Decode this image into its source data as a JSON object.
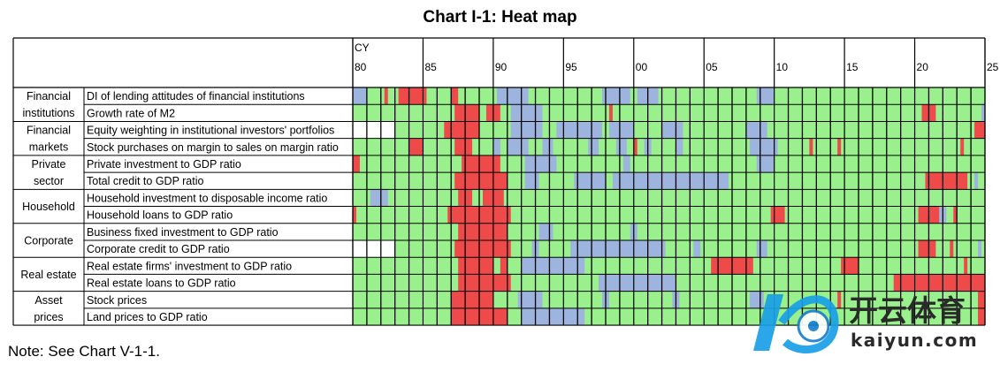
{
  "title": "Chart I-1: Heat map",
  "note": "Note: See Chart V-1-1.",
  "watermark": {
    "brand_cn": "开云体育",
    "brand_en": "kaiyun.com"
  },
  "colors": {
    "green": "#99f08c",
    "red": "#ee4a4a",
    "blue": "#9db4de",
    "white": "#ffffff",
    "grid": "#000000"
  },
  "chart_data": {
    "type": "heatmap",
    "title": "Chart I-1: Heat map",
    "axis_label": "CY",
    "year_ticks": [
      "80",
      "85",
      "90",
      "95",
      "00",
      "05",
      "10",
      "15",
      "20",
      "25"
    ],
    "x_range": [
      1980,
      2025
    ],
    "legend": [],
    "groups": [
      {
        "label": "Financial institutions",
        "label_lines": [
          "Financial",
          "institutions"
        ],
        "rows": [
          0,
          1
        ]
      },
      {
        "label": "Financial markets",
        "label_lines": [
          "Financial",
          "markets"
        ],
        "rows": [
          2,
          3
        ]
      },
      {
        "label": "Private sector",
        "label_lines": [
          "Private",
          "sector"
        ],
        "rows": [
          4,
          5
        ]
      },
      {
        "label": "Household",
        "label_lines": [
          "Household"
        ],
        "rows": [
          6,
          7
        ]
      },
      {
        "label": "Corporate",
        "label_lines": [
          "Corporate"
        ],
        "rows": [
          8,
          9
        ]
      },
      {
        "label": "Real estate",
        "label_lines": [
          "Real estate"
        ],
        "rows": [
          10,
          11
        ]
      },
      {
        "label": "Asset prices",
        "label_lines": [
          "Asset",
          "prices"
        ],
        "rows": [
          12,
          13
        ]
      }
    ],
    "rows": [
      {
        "label": "DI of lending attitudes of financial institutions",
        "start": 1980,
        "red": [
          [
            1982.25,
            1982.5
          ],
          [
            1983.25,
            1985.25
          ],
          [
            1987,
            1987.5
          ]
        ],
        "blue": [
          [
            1980,
            1981
          ],
          [
            1990.25,
            1992.5
          ],
          [
            1997.75,
            1999.75
          ],
          [
            2000.25,
            2001.75
          ],
          [
            2008.75,
            2010
          ]
        ]
      },
      {
        "label": "Growth rate of M2",
        "start": 1980,
        "red": [
          [
            1987.25,
            1989
          ],
          [
            1989.5,
            1990.5
          ],
          [
            1998.25,
            1998.5
          ],
          [
            2020.5,
            2021.5
          ]
        ],
        "blue": [
          [
            1991.25,
            1993.5
          ],
          [
            2024.75,
            2025
          ]
        ]
      },
      {
        "label": "Equity weighting in institutional investors' portfolios",
        "start": 1983,
        "red": [
          [
            1986.5,
            1989
          ],
          [
            2024.25,
            2025
          ]
        ],
        "blue": [
          [
            1991.25,
            1993.5
          ],
          [
            1994.5,
            1997.75
          ],
          [
            1998.25,
            2000
          ],
          [
            2002,
            2003.5
          ],
          [
            2008,
            2009.5
          ]
        ]
      },
      {
        "label": "Stock purchases on margin to sales on margin ratio",
        "start": 1980,
        "red": [
          [
            1984,
            1985
          ],
          [
            1987.25,
            1988.5
          ],
          [
            2000,
            2000.25
          ],
          [
            2012.5,
            2012.75
          ],
          [
            2014.5,
            2014.75
          ],
          [
            2023.25,
            2023.5
          ]
        ],
        "blue": [
          [
            1990,
            1990.5
          ],
          [
            1991,
            1992.5
          ],
          [
            1993.5,
            1994.25
          ],
          [
            1996.75,
            1997.5
          ],
          [
            1998.75,
            1999.5
          ],
          [
            2000.75,
            2001.25
          ],
          [
            2003,
            2003.5
          ],
          [
            2008.25,
            2010.25
          ]
        ]
      },
      {
        "label": "Private investment to GDP ratio",
        "start": 1980,
        "red": [
          [
            1980,
            1980.5
          ],
          [
            1987.75,
            1990.5
          ]
        ],
        "blue": [
          [
            1992.25,
            1994.5
          ],
          [
            1999.25,
            1999.75
          ],
          [
            2008.75,
            2010
          ]
        ]
      },
      {
        "label": "Total credit to GDP ratio",
        "start": 1980,
        "red": [
          [
            1987.25,
            1991
          ],
          [
            2020.75,
            2023.75
          ]
        ],
        "blue": [
          [
            1992.25,
            1993.25
          ],
          [
            1995.75,
            1998
          ],
          [
            1998.5,
            2006.75
          ],
          [
            2024.25,
            2024.5
          ]
        ]
      },
      {
        "label": "Household investment to disposable income ratio",
        "start": 1980,
        "red": [
          [
            1987.5,
            1988.5
          ],
          [
            1989.25,
            1990.75
          ]
        ],
        "blue": [
          [
            1981.25,
            1982.5
          ]
        ]
      },
      {
        "label": "Household loans to GDP ratio",
        "start": 1980,
        "red": [
          [
            1980,
            1980.25
          ],
          [
            1986.75,
            1991.25
          ],
          [
            2009.75,
            2010.75
          ],
          [
            2020.25,
            2021.75
          ],
          [
            2022.75,
            2023
          ]
        ],
        "blue": [
          [
            2021.75,
            2022.25
          ]
        ]
      },
      {
        "label": "Business fixed investment to GDP ratio",
        "start": 1980,
        "red": [
          [
            1987.5,
            1991
          ]
        ],
        "blue": [
          [
            1993.25,
            1994.25
          ],
          [
            1999.75,
            2000.25
          ]
        ]
      },
      {
        "label": "Corporate credit to GDP ratio",
        "start": 1983,
        "red": [
          [
            1987.25,
            1991.25
          ],
          [
            2020.25,
            2021.5
          ],
          [
            2022.5,
            2022.75
          ]
        ],
        "blue": [
          [
            1992.75,
            1993.25
          ],
          [
            1995.5,
            2002.25
          ],
          [
            2004.25,
            2004.75
          ],
          [
            2008.75,
            2009.5
          ],
          [
            2024.5,
            2024.75
          ]
        ]
      },
      {
        "label": "Real estate firms' investment to GDP ratio",
        "start": 1980,
        "red": [
          [
            1987.5,
            1990
          ],
          [
            1990.5,
            1991
          ],
          [
            2005.5,
            2008.5
          ],
          [
            2014.75,
            2016
          ],
          [
            2023.5,
            2023.75
          ]
        ],
        "blue": [
          [
            1992,
            1996.5
          ]
        ]
      },
      {
        "label": "Real estate loans to GDP ratio",
        "start": 1980,
        "red": [
          [
            1987.5,
            1991.25
          ],
          [
            2018.5,
            2025
          ]
        ],
        "blue": [
          [
            1997.5,
            2003
          ]
        ]
      },
      {
        "label": "Stock prices",
        "start": 1980,
        "red": [
          [
            1987,
            1990
          ],
          [
            2014.5,
            2014.75
          ],
          [
            2024.5,
            2025
          ]
        ],
        "blue": [
          [
            1991.75,
            1993.5
          ],
          [
            1997.75,
            1998.25
          ],
          [
            2002.75,
            2003.25
          ],
          [
            2008.25,
            2009.25
          ]
        ]
      },
      {
        "label": "Land prices to GDP ratio",
        "start": 1980,
        "red": [
          [
            1987,
            1991
          ],
          [
            2024.5,
            2025
          ]
        ],
        "blue": [
          [
            1992,
            1996.5
          ]
        ]
      }
    ]
  }
}
